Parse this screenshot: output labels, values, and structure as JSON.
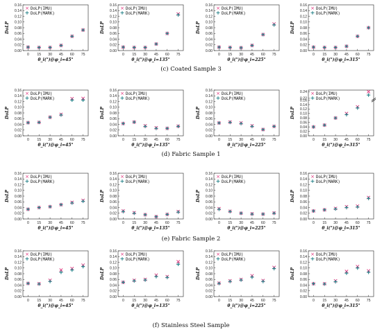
{
  "colors": {
    "imu": "#e0307a",
    "mark": "#1f7f86",
    "axis": "#222222"
  },
  "legend": {
    "imu_label": "DoLP(IMU)",
    "mark_label": "DoLP(MARK)"
  },
  "captions": [
    "(c) Coated Sample 3",
    "(d) Fabric Sample 1",
    "(e) Fabric Sample 2",
    "(f) Stainless Steel Sample"
  ],
  "chart_data": [
    {
      "type": "scatter",
      "row": 0,
      "col": 0,
      "ylabel": "DoLP",
      "xlabel": "θ_i(°)@φ_i=45°",
      "x": [
        0,
        15,
        30,
        45,
        60,
        75
      ],
      "ylim": [
        0,
        0.16
      ],
      "yticks": [
        0,
        0.02,
        0.04,
        0.06,
        0.08,
        0.1,
        0.12,
        0.14,
        0.16
      ],
      "series": [
        {
          "name": "DoLP(IMU)",
          "values": [
            0.012,
            0.011,
            0.011,
            0.018,
            0.05,
            0.072
          ]
        },
        {
          "name": "DoLP(MARK)",
          "values": [
            0.012,
            0.011,
            0.011,
            0.018,
            0.05,
            0.072
          ]
        }
      ]
    },
    {
      "type": "scatter",
      "row": 0,
      "col": 1,
      "ylabel": "DoLP",
      "xlabel": "θ_i(°)@φ_i=135°",
      "x": [
        0,
        15,
        30,
        45,
        60,
        75
      ],
      "ylim": [
        0,
        0.16
      ],
      "yticks": [
        0,
        0.02,
        0.04,
        0.06,
        0.08,
        0.1,
        0.12,
        0.14,
        0.16
      ],
      "series": [
        {
          "name": "DoLP(IMU)",
          "values": [
            0.012,
            0.011,
            0.011,
            0.023,
            0.06,
            0.128
          ]
        },
        {
          "name": "DoLP(MARK)",
          "values": [
            0.012,
            0.011,
            0.011,
            0.023,
            0.06,
            0.125
          ]
        }
      ]
    },
    {
      "type": "scatter",
      "row": 0,
      "col": 2,
      "ylabel": "DoLP",
      "xlabel": "θ_i(°)@φ_i=225°",
      "x": [
        0,
        15,
        30,
        45,
        60,
        75
      ],
      "ylim": [
        0,
        0.16
      ],
      "yticks": [
        0,
        0.02,
        0.04,
        0.06,
        0.08,
        0.1,
        0.12,
        0.14,
        0.16
      ],
      "series": [
        {
          "name": "DoLP(IMU)",
          "values": [
            0.012,
            0.011,
            0.01,
            0.018,
            0.056,
            0.093
          ]
        },
        {
          "name": "DoLP(MARK)",
          "values": [
            0.012,
            0.011,
            0.01,
            0.018,
            0.056,
            0.09
          ]
        }
      ]
    },
    {
      "type": "scatter",
      "row": 0,
      "col": 3,
      "ylabel": "DoLP",
      "xlabel": "θ_i(°)@φ_i=315°",
      "x": [
        0,
        15,
        30,
        45,
        60,
        75
      ],
      "ylim": [
        0,
        0.16
      ],
      "yticks": [
        0,
        0.02,
        0.04,
        0.06,
        0.08,
        0.1,
        0.12,
        0.14,
        0.16
      ],
      "series": [
        {
          "name": "DoLP(IMU)",
          "values": [
            0.012,
            0.011,
            0.011,
            0.015,
            0.05,
            0.08
          ]
        },
        {
          "name": "DoLP(MARK)",
          "values": [
            0.012,
            0.011,
            0.011,
            0.015,
            0.05,
            0.08
          ]
        }
      ]
    },
    {
      "type": "scatter",
      "row": 1,
      "col": 0,
      "ylabel": "DoLP",
      "xlabel": "θ_i(°)@φ_i=45°",
      "x": [
        0,
        15,
        30,
        45,
        60,
        75
      ],
      "ylim": [
        0,
        0.16
      ],
      "yticks": [
        0,
        0.02,
        0.04,
        0.06,
        0.08,
        0.1,
        0.12,
        0.14,
        0.16
      ],
      "series": [
        {
          "name": "DoLP(IMU)",
          "values": [
            0.046,
            0.047,
            0.065,
            0.075,
            0.13,
            0.131
          ]
        },
        {
          "name": "DoLP(MARK)",
          "values": [
            0.046,
            0.047,
            0.065,
            0.073,
            0.125,
            0.125
          ]
        }
      ]
    },
    {
      "type": "scatter",
      "row": 1,
      "col": 1,
      "ylabel": "DoLP",
      "xlabel": "θ_i(°)@φ_i=135°",
      "x": [
        0,
        15,
        30,
        45,
        60,
        75
      ],
      "ylim": [
        0,
        0.16
      ],
      "yticks": [
        0,
        0.02,
        0.04,
        0.06,
        0.08,
        0.1,
        0.12,
        0.14,
        0.16
      ],
      "series": [
        {
          "name": "DoLP(IMU)",
          "values": [
            0.043,
            0.048,
            0.035,
            0.028,
            0.026,
            0.034
          ]
        },
        {
          "name": "DoLP(MARK)",
          "values": [
            0.043,
            0.048,
            0.033,
            0.026,
            0.026,
            0.033
          ]
        }
      ]
    },
    {
      "type": "scatter",
      "row": 1,
      "col": 2,
      "ylabel": "DoLP",
      "xlabel": "θ_i(°)@φ_i=225°",
      "x": [
        0,
        15,
        30,
        45,
        60,
        75
      ],
      "ylim": [
        0,
        0.16
      ],
      "yticks": [
        0,
        0.02,
        0.04,
        0.06,
        0.08,
        0.1,
        0.12,
        0.14,
        0.16
      ],
      "series": [
        {
          "name": "DoLP(IMU)",
          "values": [
            0.045,
            0.048,
            0.045,
            0.035,
            0.022,
            0.033
          ]
        },
        {
          "name": "DoLP(MARK)",
          "values": [
            0.045,
            0.047,
            0.043,
            0.033,
            0.022,
            0.033
          ]
        }
      ]
    },
    {
      "type": "scatter",
      "row": 1,
      "col": 3,
      "ylabel": "DoLP",
      "xlabel": "θ_i(°)@φ_i=315°",
      "x": [
        0,
        15,
        30,
        45,
        60,
        75
      ],
      "ylim": [
        0,
        0.16
      ],
      "yticks": [
        0,
        0.02,
        0.04,
        0.06,
        0.08,
        0.1,
        0.12,
        0.14,
        0.16,
        0.22,
        0.24
      ],
      "axis_break": [
        0.16,
        0.22
      ],
      "series": [
        {
          "name": "DoLP(IMU)",
          "values": [
            0.04,
            0.048,
            0.08,
            0.1,
            0.13,
            0.24
          ]
        },
        {
          "name": "DoLP(MARK)",
          "values": [
            0.04,
            0.048,
            0.08,
            0.095,
            0.125,
            0.23
          ]
        }
      ]
    },
    {
      "type": "scatter",
      "row": 2,
      "col": 0,
      "ylabel": "DoLP",
      "xlabel": "θ_i(°)@φ_i=45°",
      "x": [
        0,
        15,
        30,
        45,
        60,
        75
      ],
      "ylim": [
        0,
        0.16
      ],
      "yticks": [
        0,
        0.02,
        0.04,
        0.06,
        0.08,
        0.1,
        0.12,
        0.14,
        0.16
      ],
      "series": [
        {
          "name": "DoLP(IMU)",
          "values": [
            0.034,
            0.04,
            0.043,
            0.05,
            0.058,
            0.065
          ]
        },
        {
          "name": "DoLP(MARK)",
          "values": [
            0.034,
            0.04,
            0.043,
            0.05,
            0.056,
            0.062
          ]
        }
      ]
    },
    {
      "type": "scatter",
      "row": 2,
      "col": 1,
      "ylabel": "DoLP",
      "xlabel": "θ_i(°)@φ_i=135°",
      "x": [
        0,
        15,
        30,
        45,
        60,
        75
      ],
      "ylim": [
        0,
        0.16
      ],
      "yticks": [
        0,
        0.02,
        0.04,
        0.06,
        0.08,
        0.1,
        0.12,
        0.14,
        0.16
      ],
      "series": [
        {
          "name": "DoLP(IMU)",
          "values": [
            0.028,
            0.022,
            0.015,
            0.008,
            0.016,
            0.026
          ]
        },
        {
          "name": "DoLP(MARK)",
          "values": [
            0.026,
            0.02,
            0.015,
            0.008,
            0.016,
            0.024
          ]
        }
      ]
    },
    {
      "type": "scatter",
      "row": 2,
      "col": 2,
      "ylabel": "DoLP",
      "xlabel": "θ_i(°)@φ_i=225°",
      "x": [
        0,
        15,
        30,
        45,
        60,
        75
      ],
      "ylim": [
        0,
        0.16
      ],
      "yticks": [
        0,
        0.02,
        0.04,
        0.06,
        0.08,
        0.1,
        0.12,
        0.14,
        0.16
      ],
      "series": [
        {
          "name": "DoLP(IMU)",
          "values": [
            0.036,
            0.027,
            0.02,
            0.018,
            0.017,
            0.021
          ]
        },
        {
          "name": "DoLP(MARK)",
          "values": [
            0.034,
            0.026,
            0.02,
            0.017,
            0.017,
            0.02
          ]
        }
      ]
    },
    {
      "type": "scatter",
      "row": 2,
      "col": 3,
      "ylabel": "DoLP",
      "xlabel": "θ_i(°)@φ_i=315°",
      "x": [
        0,
        15,
        30,
        45,
        60,
        75
      ],
      "ylim": [
        0,
        0.16
      ],
      "yticks": [
        0,
        0.02,
        0.04,
        0.06,
        0.08,
        0.1,
        0.12,
        0.14,
        0.16
      ],
      "series": [
        {
          "name": "DoLP(IMU)",
          "values": [
            0.028,
            0.032,
            0.037,
            0.043,
            0.045,
            0.075
          ]
        },
        {
          "name": "DoLP(MARK)",
          "values": [
            0.028,
            0.032,
            0.035,
            0.04,
            0.042,
            0.072
          ]
        }
      ]
    },
    {
      "type": "scatter",
      "row": 3,
      "col": 0,
      "ylabel": "DoLP",
      "xlabel": "θ_i(°)@φ_i=45°",
      "x": [
        0,
        15,
        30,
        45,
        60,
        75
      ],
      "ylim": [
        0,
        0.16
      ],
      "yticks": [
        0,
        0.02,
        0.04,
        0.06,
        0.08,
        0.1,
        0.12,
        0.14,
        0.16
      ],
      "series": [
        {
          "name": "DoLP(IMU)",
          "values": [
            0.046,
            0.045,
            0.057,
            0.093,
            0.098,
            0.11
          ]
        },
        {
          "name": "DoLP(MARK)",
          "values": [
            0.046,
            0.044,
            0.053,
            0.085,
            0.093,
            0.105
          ]
        }
      ]
    },
    {
      "type": "scatter",
      "row": 3,
      "col": 1,
      "ylabel": "DoLP",
      "xlabel": "θ_i(°)@φ_i=135°",
      "x": [
        0,
        15,
        30,
        45,
        60,
        75
      ],
      "ylim": [
        0,
        0.16
      ],
      "yticks": [
        0,
        0.02,
        0.04,
        0.06,
        0.08,
        0.1,
        0.12,
        0.14,
        0.16
      ],
      "series": [
        {
          "name": "DoLP(IMU)",
          "values": [
            0.05,
            0.057,
            0.06,
            0.075,
            0.07,
            0.122
          ]
        },
        {
          "name": "DoLP(MARK)",
          "values": [
            0.05,
            0.055,
            0.058,
            0.07,
            0.067,
            0.113
          ]
        }
      ]
    },
    {
      "type": "scatter",
      "row": 3,
      "col": 2,
      "ylabel": "DoLP",
      "xlabel": "θ_i(°)@φ_i=225°",
      "x": [
        0,
        15,
        30,
        45,
        60,
        75
      ],
      "ylim": [
        0,
        0.16
      ],
      "yticks": [
        0,
        0.02,
        0.04,
        0.06,
        0.08,
        0.1,
        0.12,
        0.14,
        0.16
      ],
      "series": [
        {
          "name": "DoLP(IMU)",
          "values": [
            0.047,
            0.055,
            0.06,
            0.073,
            0.056,
            0.102
          ]
        },
        {
          "name": "DoLP(MARK)",
          "values": [
            0.046,
            0.053,
            0.058,
            0.068,
            0.053,
            0.098
          ]
        }
      ]
    },
    {
      "type": "scatter",
      "row": 3,
      "col": 3,
      "ylabel": "DoLP",
      "xlabel": "θ_i(°)@φ_i=315°",
      "x": [
        0,
        15,
        30,
        45,
        60,
        75
      ],
      "ylim": [
        0,
        0.16
      ],
      "yticks": [
        0,
        0.02,
        0.04,
        0.06,
        0.08,
        0.1,
        0.12,
        0.14,
        0.16
      ],
      "series": [
        {
          "name": "DoLP(IMU)",
          "values": [
            0.045,
            0.045,
            0.055,
            0.088,
            0.105,
            0.09
          ]
        },
        {
          "name": "DoLP(MARK)",
          "values": [
            0.045,
            0.044,
            0.052,
            0.082,
            0.1,
            0.085
          ]
        }
      ]
    }
  ]
}
